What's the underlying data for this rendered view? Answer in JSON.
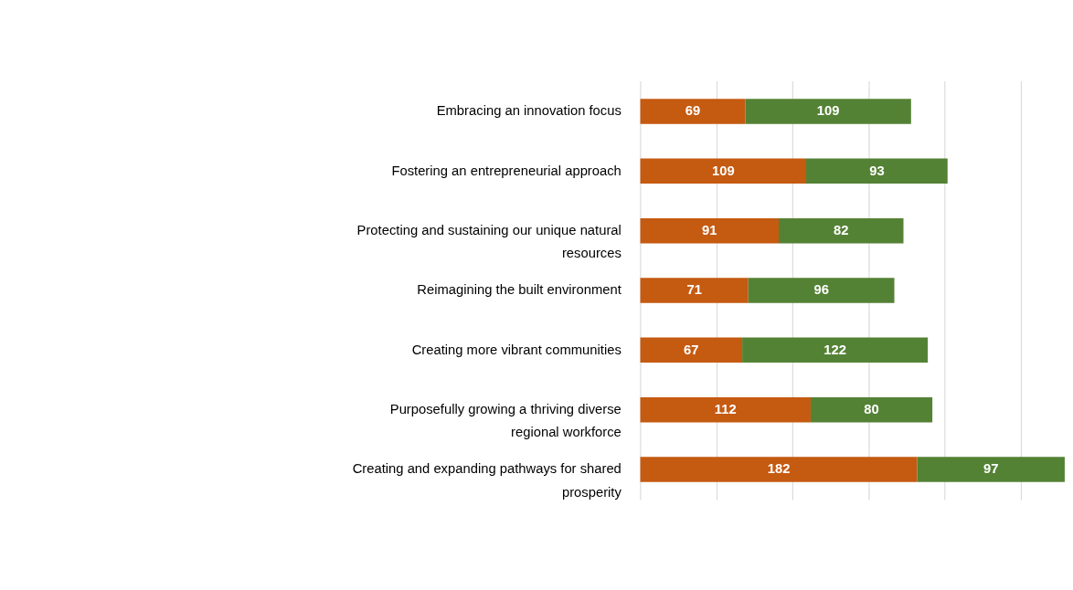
{
  "chart_data": {
    "type": "bar",
    "orientation": "horizontal",
    "stacked": true,
    "categories": [
      "Embracing an innovation focus",
      "Fostering an entrepreneurial approach",
      "Protecting and sustaining our unique natural resources",
      "Reimagining the built environment",
      "Creating more vibrant communities",
      "Purposefully growing a thriving diverse regional workforce",
      "Creating and expanding pathways for shared prosperity"
    ],
    "series": [
      {
        "color": "#c55a11",
        "values": [
          69,
          109,
          91,
          71,
          67,
          112,
          182
        ]
      },
      {
        "color": "#548235",
        "values": [
          109,
          93,
          82,
          96,
          122,
          80,
          97
        ]
      }
    ],
    "xlim": [
      0,
      280
    ],
    "xticks": [
      {
        "value": 0,
        "label": null
      },
      {
        "value": 50,
        "label": null
      },
      {
        "value": 100,
        "label": null
      },
      {
        "value": 150,
        "label": null
      },
      {
        "value": 200,
        "label": null
      },
      {
        "value": 250,
        "label": null
      }
    ],
    "grid": "x",
    "tick_labels": "y",
    "data_labels": true
  }
}
